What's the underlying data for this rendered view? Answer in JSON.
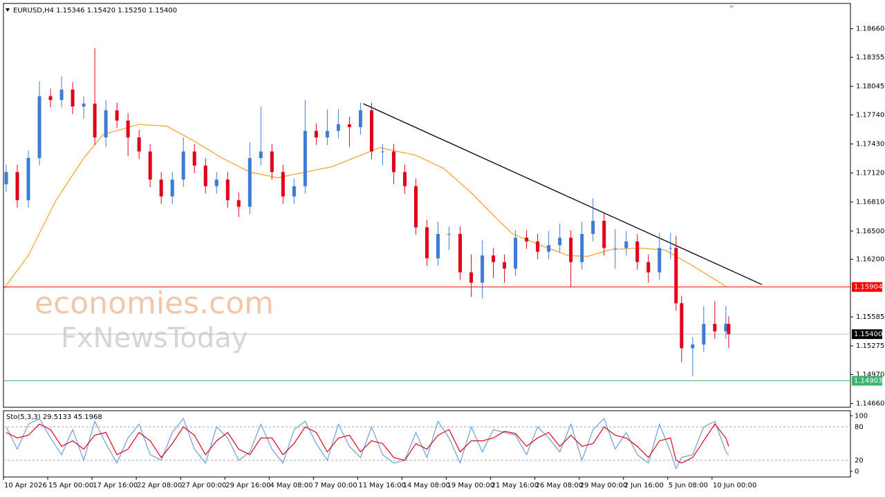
{
  "chart_data": [
    {
      "type": "candlestick",
      "title": "EURUSD,H4  1.15346 1.15420 1.15250 1.15400",
      "up_color": "#3d7bd6",
      "down_color": "#e0001a",
      "x": [
        1,
        5,
        9,
        13,
        17,
        21,
        25,
        29,
        33,
        37,
        41,
        45,
        49,
        53,
        57,
        61,
        65,
        69,
        73,
        77,
        81,
        85,
        89,
        93,
        97,
        101,
        105,
        109,
        113,
        117,
        121,
        125,
        129,
        133,
        137,
        141,
        145,
        149,
        153,
        157,
        161,
        165,
        169,
        173,
        177,
        181,
        185,
        189,
        193,
        197,
        201,
        205,
        209,
        213,
        217,
        221,
        225,
        229,
        233,
        237,
        241,
        243,
        245,
        249,
        253,
        257,
        261,
        262
      ],
      "open": [
        1.17,
        1.1713,
        1.1683,
        1.1728,
        1.1794,
        1.179,
        1.1801,
        1.1783,
        1.1786,
        1.175,
        1.1779,
        1.1768,
        1.175,
        1.1735,
        1.1705,
        1.1687,
        1.1705,
        1.1735,
        1.172,
        1.1698,
        1.1705,
        1.1683,
        1.1676,
        1.1728,
        1.1735,
        1.1713,
        1.1687,
        1.1698,
        1.1757,
        1.175,
        1.1757,
        1.1764,
        1.1761,
        1.1779,
        1.1735,
        1.1735,
        1.1713,
        1.1698,
        1.1654,
        1.1621,
        1.1647,
        1.1647,
        1.1606,
        1.1595,
        1.1624,
        1.1617,
        1.161,
        1.1643,
        1.1639,
        1.1628,
        1.1635,
        1.1643,
        1.1617,
        1.1647,
        1.1661,
        1.1632,
        1.1632,
        1.1639,
        1.1617,
        1.1606,
        1.1632,
        1.1632,
        1.1573,
        1.1525,
        1.1529,
        1.1551,
        1.1543,
        1.1551
      ],
      "high": [
        1.1721,
        1.1721,
        1.1736,
        1.181,
        1.1802,
        1.1815,
        1.1809,
        1.1794,
        1.1845,
        1.179,
        1.1787,
        1.1776,
        1.1758,
        1.1743,
        1.1713,
        1.1713,
        1.175,
        1.1743,
        1.1728,
        1.1713,
        1.1713,
        1.1691,
        1.1745,
        1.1783,
        1.1743,
        1.1721,
        1.1706,
        1.179,
        1.1765,
        1.178,
        1.178,
        1.1772,
        1.1787,
        1.1787,
        1.1743,
        1.1743,
        1.1721,
        1.1706,
        1.1662,
        1.166,
        1.1655,
        1.1655,
        1.1625,
        1.164,
        1.1632,
        1.1625,
        1.1651,
        1.1651,
        1.1647,
        1.165,
        1.1658,
        1.1651,
        1.166,
        1.1685,
        1.1669,
        1.1652,
        1.165,
        1.1647,
        1.1625,
        1.1648,
        1.1648,
        1.1645,
        1.1581,
        1.1537,
        1.157,
        1.1575,
        1.157,
        1.1559
      ],
      "low": [
        1.1692,
        1.1675,
        1.1675,
        1.172,
        1.1782,
        1.1782,
        1.1775,
        1.177,
        1.1742,
        1.174,
        1.176,
        1.173,
        1.1727,
        1.1697,
        1.1679,
        1.1679,
        1.1697,
        1.1712,
        1.169,
        1.169,
        1.1675,
        1.1665,
        1.1668,
        1.172,
        1.1705,
        1.1679,
        1.1679,
        1.169,
        1.1742,
        1.1742,
        1.1749,
        1.174,
        1.1753,
        1.1727,
        1.172,
        1.17,
        1.169,
        1.1646,
        1.1613,
        1.1613,
        1.163,
        1.1598,
        1.158,
        1.1578,
        1.16,
        1.1595,
        1.1602,
        1.1631,
        1.162,
        1.162,
        1.1627,
        1.159,
        1.1609,
        1.1639,
        1.1624,
        1.161,
        1.1624,
        1.1609,
        1.1595,
        1.1598,
        1.162,
        1.1565,
        1.151,
        1.1495,
        1.1521,
        1.1535,
        1.1535,
        1.1525
      ],
      "close": [
        1.1713,
        1.1683,
        1.1728,
        1.1794,
        1.179,
        1.1801,
        1.1783,
        1.1786,
        1.175,
        1.1779,
        1.1768,
        1.175,
        1.1735,
        1.1705,
        1.1687,
        1.1705,
        1.1735,
        1.172,
        1.1698,
        1.1705,
        1.1683,
        1.1676,
        1.1728,
        1.1735,
        1.1713,
        1.1687,
        1.1698,
        1.1757,
        1.175,
        1.1757,
        1.1764,
        1.1761,
        1.1779,
        1.1735,
        1.1735,
        1.1713,
        1.1698,
        1.1654,
        1.1621,
        1.1647,
        1.1647,
        1.1606,
        1.1595,
        1.1624,
        1.1617,
        1.161,
        1.1643,
        1.1639,
        1.1628,
        1.1635,
        1.1643,
        1.1617,
        1.1647,
        1.1661,
        1.1632,
        1.1632,
        1.1639,
        1.1617,
        1.1606,
        1.1632,
        1.1632,
        1.1573,
        1.1525,
        1.1529,
        1.1551,
        1.1543,
        1.1551,
        1.154
      ],
      "series": [
        {
          "color": "#f5a020",
          "x": [
            0,
            9,
            19,
            29,
            36,
            49,
            59,
            69,
            79,
            89,
            99,
            109,
            119,
            129,
            136,
            149,
            159,
            169,
            179,
            184,
            194,
            204,
            211,
            219,
            229,
            239,
            249,
            261
          ],
          "values": [
            1.1588,
            1.1624,
            1.1683,
            1.1728,
            1.1753,
            1.1764,
            1.1762,
            1.1746,
            1.1728,
            1.1713,
            1.1707,
            1.1713,
            1.1719,
            1.1731,
            1.1739,
            1.1731,
            1.1717,
            1.1691,
            1.1661,
            1.1647,
            1.1635,
            1.1624,
            1.1623,
            1.163,
            1.1632,
            1.163,
            1.1613,
            1.1591
          ]
        }
      ],
      "trendline": {
        "color": "#000000",
        "x": [
          130,
          274
        ],
        "values": [
          1.1786,
          1.1593
        ]
      },
      "levels": [
        {
          "value": 1.15904,
          "label": "1.15904",
          "color": "#ff0000"
        },
        {
          "value": 1.154,
          "label": "1.15400",
          "color": "#000000"
        },
        {
          "value": 1.14903,
          "label": "1.14903",
          "color": "#3cb371"
        }
      ],
      "xlim": [
        0,
        306
      ],
      "ylim": [
        1.1462,
        1.1893
      ],
      "yticks": [
        {
          "value": 1.1866,
          "label": "1.18660"
        },
        {
          "value": 1.18355,
          "label": "1.18355"
        },
        {
          "value": 1.18045,
          "label": "1.18045"
        },
        {
          "value": 1.1774,
          "label": "1.17740"
        },
        {
          "value": 1.1743,
          "label": "1.17430"
        },
        {
          "value": 1.1712,
          "label": "1.17120"
        },
        {
          "value": 1.1681,
          "label": "1.16810"
        },
        {
          "value": 1.165,
          "label": "1.16500"
        },
        {
          "value": 1.162,
          "label": "1.16200"
        },
        {
          "value": 1.15585,
          "label": "1.15585"
        },
        {
          "value": 1.15275,
          "label": "1.15275"
        },
        {
          "value": 1.1497,
          "label": "1.14970"
        },
        {
          "value": 1.1466,
          "label": "1.14660"
        }
      ],
      "xticks": [
        {
          "value": 0,
          "label": "10 Apr 2026"
        },
        {
          "value": 16,
          "label": "15 Apr 00:00"
        },
        {
          "value": 32,
          "label": "17 Apr 16:00"
        },
        {
          "value": 48,
          "label": "22 Apr 08:00"
        },
        {
          "value": 64,
          "label": "27 Apr 00:00"
        },
        {
          "value": 80,
          "label": "29 Apr 16:00"
        },
        {
          "value": 96,
          "label": "4 May 08:00"
        },
        {
          "value": 112,
          "label": "7 May 00:00"
        },
        {
          "value": 128,
          "label": "11 May 16:00"
        },
        {
          "value": 144,
          "label": "14 May 08:00"
        },
        {
          "value": 160,
          "label": "19 May 00:00"
        },
        {
          "value": 176,
          "label": "21 May 16:00"
        },
        {
          "value": 192,
          "label": "26 May 08:00"
        },
        {
          "value": 208,
          "label": "29 May 00:00"
        },
        {
          "value": 224,
          "label": "2 Jun 16:00"
        },
        {
          "value": 240,
          "label": "5 Jun 08:00"
        },
        {
          "value": 256,
          "label": "10 Jun 00:00"
        }
      ]
    },
    {
      "type": "line",
      "title": "Sto(5,3,3) 29.5133 45.1968",
      "x": [
        1,
        5,
        9,
        13,
        17,
        21,
        25,
        29,
        33,
        37,
        41,
        45,
        49,
        53,
        57,
        61,
        65,
        69,
        73,
        77,
        81,
        85,
        89,
        93,
        97,
        101,
        105,
        109,
        113,
        117,
        121,
        125,
        129,
        133,
        137,
        141,
        145,
        149,
        153,
        157,
        161,
        165,
        169,
        173,
        177,
        181,
        185,
        189,
        193,
        197,
        201,
        205,
        209,
        213,
        217,
        221,
        225,
        229,
        233,
        237,
        241,
        243,
        245,
        249,
        253,
        257,
        261,
        262
      ],
      "series": [
        {
          "color": "#6aa0e0",
          "values": [
            80,
            40,
            85,
            95,
            60,
            30,
            75,
            20,
            90,
            50,
            15,
            60,
            85,
            30,
            20,
            70,
            95,
            40,
            15,
            80,
            60,
            20,
            35,
            85,
            40,
            15,
            75,
            90,
            50,
            20,
            85,
            45,
            25,
            80,
            30,
            15,
            20,
            70,
            25,
            90,
            60,
            15,
            80,
            35,
            75,
            70,
            65,
            30,
            80,
            60,
            35,
            85,
            20,
            75,
            95,
            40,
            70,
            30,
            15,
            85,
            35,
            5,
            25,
            30,
            80,
            90,
            35,
            29.5133
          ]
        },
        {
          "color": "#e0001a",
          "values": [
            70,
            60,
            65,
            85,
            75,
            45,
            55,
            40,
            65,
            70,
            30,
            40,
            70,
            55,
            25,
            50,
            80,
            65,
            30,
            55,
            70,
            40,
            30,
            60,
            60,
            30,
            50,
            80,
            70,
            35,
            60,
            65,
            35,
            55,
            50,
            25,
            20,
            50,
            40,
            65,
            75,
            35,
            55,
            55,
            60,
            72,
            68,
            45,
            60,
            70,
            45,
            65,
            45,
            50,
            80,
            65,
            60,
            45,
            25,
            55,
            60,
            20,
            15,
            25,
            55,
            85,
            60,
            45.1968
          ]
        }
      ],
      "xlim": [
        0,
        306
      ],
      "ylim": [
        -10,
        109
      ],
      "yticks": [
        100,
        80,
        20,
        0
      ]
    }
  ],
  "watermarks": [
    "economies.com",
    "FxNewsToday"
  ]
}
